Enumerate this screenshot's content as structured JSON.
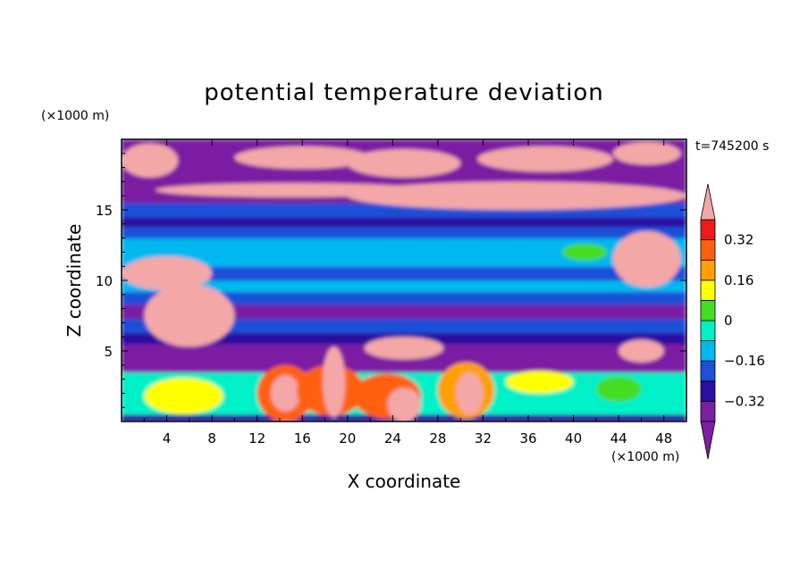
{
  "chart_data": {
    "type": "heatmap",
    "title": "potential temperature deviation",
    "xlabel": "X coordinate",
    "ylabel": "Z coordinate",
    "x_unit": "(×1000 m)",
    "y_unit": "(×1000 m)",
    "time_label": "t=745200 s",
    "xlim": [
      0,
      50
    ],
    "ylim": [
      0,
      20
    ],
    "x_ticks": [
      4,
      8,
      12,
      16,
      20,
      24,
      28,
      32,
      36,
      40,
      44,
      48
    ],
    "y_ticks": [
      5,
      10,
      15
    ],
    "colorbar": {
      "levels": [
        -0.4,
        -0.32,
        -0.24,
        -0.16,
        -0.08,
        0,
        0.08,
        0.16,
        0.24,
        0.32,
        0.4
      ],
      "tick_labels": [
        {
          "value": 0.32,
          "text": "0.32"
        },
        {
          "value": 0.16,
          "text": "0.16"
        },
        {
          "value": 0,
          "text": "0"
        },
        {
          "value": -0.16,
          "text": "−0.16"
        },
        {
          "value": -0.32,
          "text": "−0.32"
        }
      ],
      "colors": [
        "#7b1fa2",
        "#2b0fa0",
        "#1f4fd8",
        "#00b8f0",
        "#00f0c8",
        "#44dd22",
        "#ffff00",
        "#ffa000",
        "#ff6010",
        "#ee1a1a",
        "#f4a7a7"
      ],
      "extend": "both"
    },
    "bands": [
      {
        "z": [
          0.0,
          0.5
        ],
        "level": 1
      },
      {
        "z": [
          0.5,
          3.5
        ],
        "level": 4
      },
      {
        "z": [
          3.5,
          5.5
        ],
        "level": 0
      },
      {
        "z": [
          5.5,
          6.3
        ],
        "level": 1
      },
      {
        "z": [
          6.3,
          7.3
        ],
        "level": 2
      },
      {
        "z": [
          7.3,
          8.3
        ],
        "level": 0
      },
      {
        "z": [
          8.3,
          9.2
        ],
        "level": 2
      },
      {
        "z": [
          9.2,
          10.0
        ],
        "level": 3
      },
      {
        "z": [
          10.0,
          11.0
        ],
        "level": 2
      },
      {
        "z": [
          11.0,
          13.0
        ],
        "level": 3
      },
      {
        "z": [
          13.0,
          13.8
        ],
        "level": 2
      },
      {
        "z": [
          13.8,
          14.5
        ],
        "level": 1
      },
      {
        "z": [
          14.5,
          15.5
        ],
        "level": 2
      },
      {
        "z": [
          15.5,
          17.5
        ],
        "level": 0
      },
      {
        "z": [
          17.5,
          20.0
        ],
        "level": 0
      }
    ],
    "warm_patches": [
      {
        "x": 5.5,
        "z": 1.8,
        "rx": 3.5,
        "rz": 1.3,
        "level": 6
      },
      {
        "x": 14.5,
        "z": 2.0,
        "rx": 2.5,
        "rz": 2.0,
        "level": 8
      },
      {
        "x": 14.5,
        "z": 2.0,
        "rx": 1.3,
        "rz": 1.3,
        "level": 10
      },
      {
        "x": 18.5,
        "z": 2.2,
        "rx": 3.0,
        "rz": 1.8,
        "level": 8
      },
      {
        "x": 18.8,
        "z": 2.8,
        "rx": 1.0,
        "rz": 2.5,
        "level": 10
      },
      {
        "x": 23.5,
        "z": 1.8,
        "rx": 3.0,
        "rz": 1.6,
        "level": 8
      },
      {
        "x": 25.0,
        "z": 1.2,
        "rx": 1.5,
        "rz": 1.2,
        "level": 10
      },
      {
        "x": 30.5,
        "z": 2.2,
        "rx": 2.5,
        "rz": 2.0,
        "level": 7
      },
      {
        "x": 30.8,
        "z": 2.0,
        "rx": 1.2,
        "rz": 1.5,
        "level": 10
      },
      {
        "x": 37.0,
        "z": 2.8,
        "rx": 3.0,
        "rz": 0.8,
        "level": 6
      },
      {
        "x": 44.0,
        "z": 2.3,
        "rx": 2.0,
        "rz": 0.9,
        "level": 5
      },
      {
        "x": 25.0,
        "z": 5.2,
        "rx": 3.5,
        "rz": 0.8,
        "level": 10
      },
      {
        "x": 6.0,
        "z": 7.5,
        "rx": 4.0,
        "rz": 2.2,
        "level": 10
      },
      {
        "x": 4.0,
        "z": 10.5,
        "rx": 4.0,
        "rz": 1.2,
        "level": 10
      },
      {
        "x": 46.5,
        "z": 11.5,
        "rx": 3.0,
        "rz": 2.0,
        "level": 10
      },
      {
        "x": 46.0,
        "z": 5.0,
        "rx": 2.0,
        "rz": 0.8,
        "level": 10
      },
      {
        "x": 41.0,
        "z": 12.0,
        "rx": 2.0,
        "rz": 0.6,
        "level": 5
      },
      {
        "x": 35.0,
        "z": 16.0,
        "rx": 15.0,
        "rz": 1.0,
        "level": 10
      },
      {
        "x": 15.0,
        "z": 16.4,
        "rx": 12.0,
        "rz": 0.5,
        "level": 10
      },
      {
        "x": 2.5,
        "z": 18.5,
        "rx": 2.5,
        "rz": 1.2,
        "level": 10
      },
      {
        "x": 16.0,
        "z": 18.7,
        "rx": 6.0,
        "rz": 0.8,
        "level": 10
      },
      {
        "x": 25.0,
        "z": 18.3,
        "rx": 5.0,
        "rz": 1.0,
        "level": 10
      },
      {
        "x": 37.5,
        "z": 18.6,
        "rx": 6.0,
        "rz": 0.9,
        "level": 10
      },
      {
        "x": 46.5,
        "z": 19.0,
        "rx": 3.0,
        "rz": 0.8,
        "level": 10
      }
    ]
  }
}
